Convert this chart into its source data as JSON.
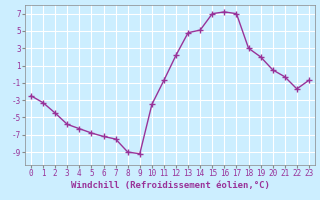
{
  "x": [
    0,
    1,
    2,
    3,
    4,
    5,
    6,
    7,
    8,
    9,
    10,
    11,
    12,
    13,
    14,
    15,
    16,
    17,
    18,
    19,
    20,
    21,
    22,
    23
  ],
  "y": [
    -2.5,
    -3.3,
    -4.5,
    -5.8,
    -6.3,
    -6.8,
    -7.2,
    -7.5,
    -9.0,
    -9.2,
    -3.5,
    -0.7,
    2.2,
    4.8,
    5.1,
    7.0,
    7.2,
    7.0,
    3.0,
    2.0,
    0.5,
    -0.3,
    -1.7,
    -0.7
  ],
  "line_color": "#993399",
  "marker": "+",
  "marker_size": 4,
  "marker_linewidth": 1.0,
  "line_width": 1.0,
  "xlabel": "Windchill (Refroidissement éolien,°C)",
  "xlabel_color": "#993399",
  "bg_color": "#cceeff",
  "grid_color": "#ffffff",
  "yticks": [
    -9,
    -7,
    -5,
    -3,
    -1,
    1,
    3,
    5,
    7
  ],
  "xticks": [
    0,
    1,
    2,
    3,
    4,
    5,
    6,
    7,
    8,
    9,
    10,
    11,
    12,
    13,
    14,
    15,
    16,
    17,
    18,
    19,
    20,
    21,
    22,
    23
  ],
  "ylim": [
    -10.5,
    8.0
  ],
  "xlim": [
    -0.5,
    23.5
  ],
  "tick_fontsize": 5.5,
  "xlabel_fontsize": 6.5
}
